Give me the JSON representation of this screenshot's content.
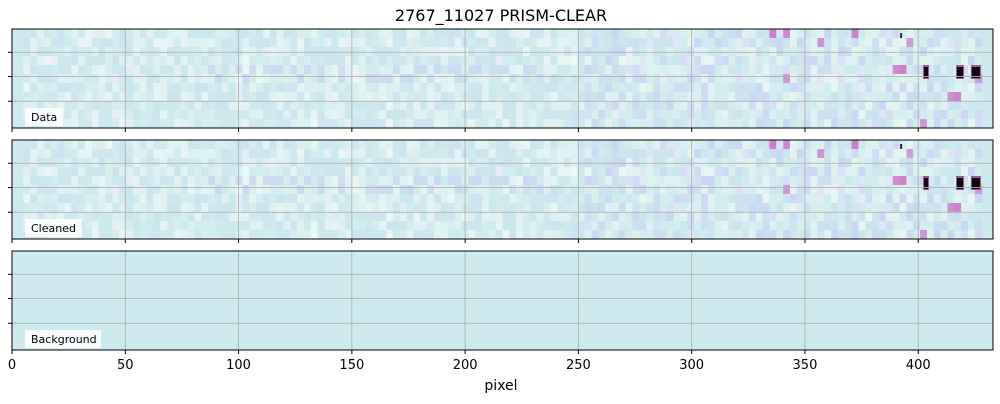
{
  "chart_data": {
    "type": "heatmap",
    "title": "2767_11027 PRISM-CLEAR",
    "xlabel": "pixel",
    "xlim": [
      0,
      433
    ],
    "xticks": [
      0,
      50,
      100,
      150,
      200,
      250,
      300,
      350,
      400
    ],
    "grid": true,
    "colormap": "cubehelix_r",
    "panels": [
      {
        "label": "Data",
        "content": "2D spectrum with bright emission features near pixels 403, 418 and 425"
      },
      {
        "label": "Cleaned",
        "content": "2D spectrum with bright emission features near pixels 403, 418 and 425"
      },
      {
        "label": "Background",
        "content": "uniform background"
      }
    ]
  },
  "colors": {
    "background_fill": "#cdebee",
    "grid": "#b0b0b0",
    "axis": "#000000"
  }
}
